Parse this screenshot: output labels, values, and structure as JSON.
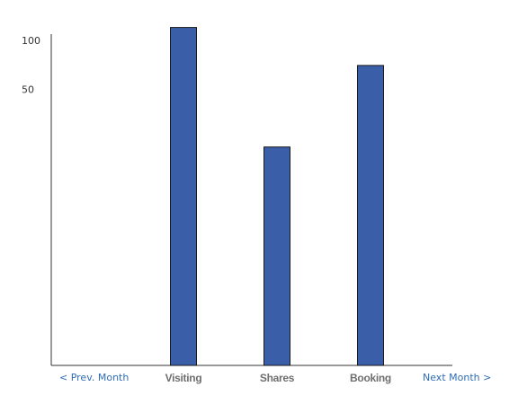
{
  "chart_data": {
    "type": "bar",
    "categories": [
      "Visiting",
      "Shares",
      "Booking"
    ],
    "values": [
      120,
      22,
      70
    ],
    "yscale": "log",
    "yticks": [
      50,
      100,
      200,
      500
    ],
    "ylim": [
      15,
      1000
    ],
    "bar_color": "#3a5ea8",
    "title": "",
    "xlabel": "",
    "ylabel": "",
    "grid": false
  },
  "navigation": {
    "prev_label": "< Prev.  Month",
    "next_label": "Next Month >"
  },
  "colors": {
    "axis": "#333333",
    "link": "#2f6db5",
    "category_label": "#6f6f6f"
  }
}
